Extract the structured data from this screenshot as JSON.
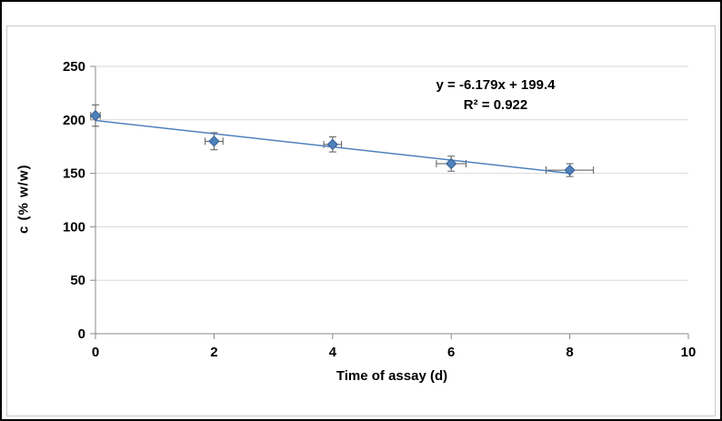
{
  "chart_data": {
    "type": "scatter",
    "title": "",
    "xlabel": "Time of assay (d)",
    "ylabel": "c  (% w/w)",
    "xlim": [
      0,
      10
    ],
    "ylim": [
      0,
      250
    ],
    "x_ticks": [
      0,
      2,
      4,
      6,
      8,
      10
    ],
    "y_ticks": [
      0,
      50,
      100,
      150,
      200,
      250
    ],
    "grid": "horizontal-major",
    "legend": "none",
    "points": [
      {
        "x": 0,
        "y": 204,
        "y_err": 10,
        "x_err": 0.08
      },
      {
        "x": 2,
        "y": 180,
        "y_err": 8,
        "x_err": 0.15
      },
      {
        "x": 4,
        "y": 177,
        "y_err": 7,
        "x_err": 0.15
      },
      {
        "x": 6,
        "y": 159,
        "y_err": 7,
        "x_err": 0.25
      },
      {
        "x": 8,
        "y": 153,
        "y_err": 6,
        "x_err": 0.4
      }
    ],
    "trendline": {
      "slope": -6.179,
      "intercept": 199.4,
      "x_start": 0,
      "x_end": 8
    },
    "annotation": {
      "line1": "y = -6.179x + 199.4",
      "line2": "R² = 0.922"
    },
    "colors": {
      "marker": "#4F81BD",
      "marker_edge": "#36618E",
      "trendline": "#4F81BD",
      "error_bar": "#595959",
      "gridline": "#D9D9D9",
      "axis": "#898989",
      "text": "#000000"
    }
  }
}
